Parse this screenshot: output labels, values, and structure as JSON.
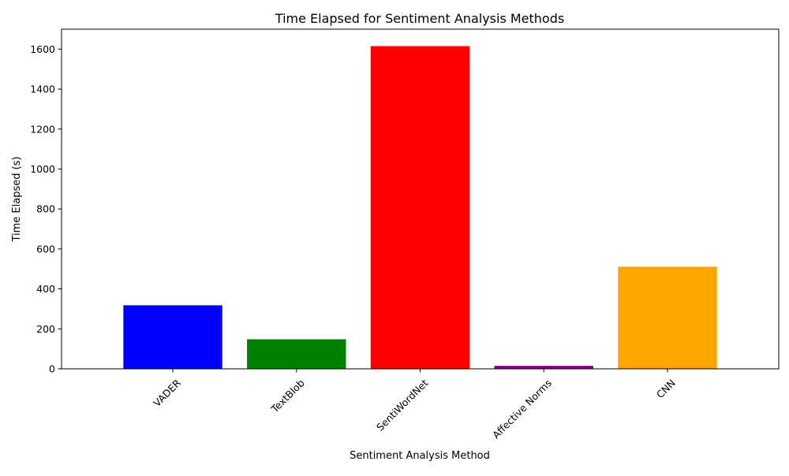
{
  "chart_data": {
    "type": "bar",
    "title": "Time Elapsed for Sentiment Analysis Methods",
    "xlabel": "Sentiment Analysis Method",
    "ylabel": "Time Elapsed (s)",
    "categories": [
      "VADER",
      "TextBlob",
      "SentiWordNet",
      "Affective Norms",
      "CNN"
    ],
    "values": [
      318,
      148,
      1615,
      15,
      511
    ],
    "colors": [
      "#0000ff",
      "#008000",
      "#ff0000",
      "#800080",
      "#ffa500"
    ],
    "ylim": [
      0,
      1700
    ],
    "yticks": [
      0,
      200,
      400,
      600,
      800,
      1000,
      1200,
      1400,
      1600
    ],
    "xtick_rotation": 45,
    "grid": false,
    "legend": "none"
  }
}
